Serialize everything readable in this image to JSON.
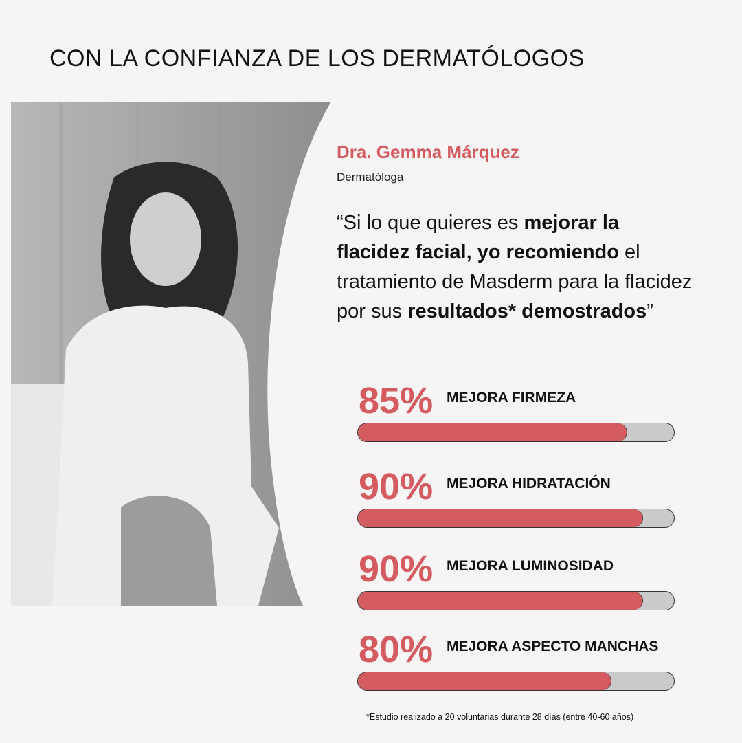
{
  "title": "CON LA CONFIANZA DE LOS DERMATÓLOGOS",
  "doctor": {
    "name": "Dra. Gemma Márquez",
    "role": "Dermatóloga"
  },
  "quote": [
    {
      "text": "“Si lo que quieres es ",
      "bold": false
    },
    {
      "text": "mejorar la flacidez facial, yo recomiendo",
      "bold": true
    },
    {
      "text": " el tratamiento de Masderm para la flacidez por sus ",
      "bold": false
    },
    {
      "text": "resultados* demostrados",
      "bold": true
    },
    {
      "text": "”",
      "bold": false
    }
  ],
  "stats": [
    {
      "percent": "85%",
      "value": 85,
      "label": "MEJORA FIRMEZA"
    },
    {
      "percent": "90%",
      "value": 90,
      "label": "MEJORA HIDRATACIÓN"
    },
    {
      "percent": "90%",
      "value": 90,
      "label": "MEJORA LUMINOSIDAD"
    },
    {
      "percent": "80%",
      "value": 80,
      "label": "MEJORA ASPECTO MANCHAS"
    }
  ],
  "footnote": "*Estudio realizado a 20 voluntarias durante 28 días (entre 40-60 años)",
  "colors": {
    "accent": "#d45c60",
    "track": "#cacaca",
    "background": "#f6f4f4"
  }
}
